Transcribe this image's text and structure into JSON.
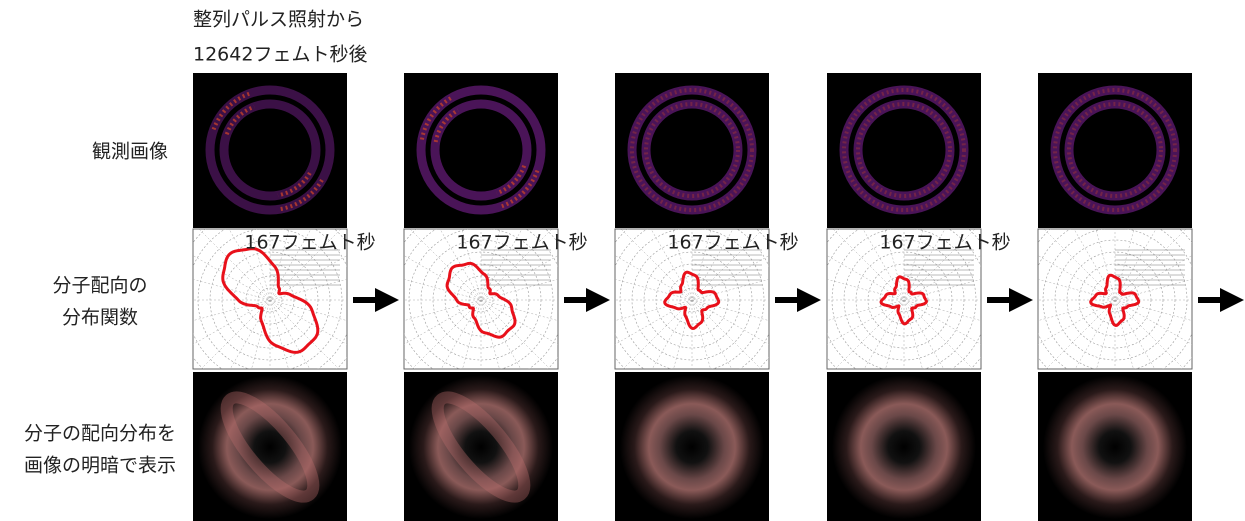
{
  "header": {
    "lines": [
      "整列パルス照射から",
      "12642フェムト秒後"
    ]
  },
  "rows": [
    {
      "label": [
        "観測画像"
      ]
    },
    {
      "label": [
        "分子配向の",
        "分布関数"
      ]
    },
    {
      "label": [
        "分子の配向分布を",
        "画像の明暗で表示"
      ]
    }
  ],
  "intervals": [
    "167フェムト秒",
    "167フェムト秒",
    "167フェムト秒",
    "167フェムト秒"
  ]
}
